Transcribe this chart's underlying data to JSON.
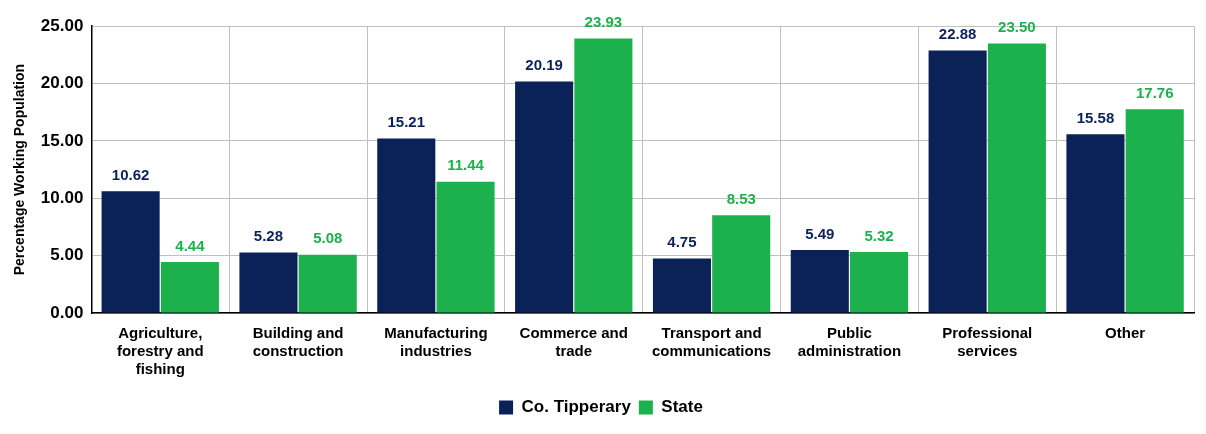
{
  "chart_data": {
    "type": "bar",
    "ylabel": "Percentage Working Population",
    "categories": [
      "Agriculture, forestry and fishing",
      "Building and construction",
      "Manufacturing industries",
      "Commerce and trade",
      "Transport and communications",
      "Public administration",
      "Professional services",
      "Other"
    ],
    "series": [
      {
        "name": "Co. Tipperary",
        "color": "#0b2259",
        "values": [
          10.62,
          5.28,
          15.21,
          20.19,
          4.75,
          5.49,
          22.88,
          15.58
        ],
        "value_labels": [
          "10.62",
          "5.28",
          "15.21",
          "20.19",
          "4.75",
          "5.49",
          "22.88",
          "15.58"
        ]
      },
      {
        "name": "State",
        "color": "#1cb14c",
        "values": [
          4.44,
          5.08,
          11.44,
          23.93,
          8.53,
          5.32,
          23.5,
          17.76
        ],
        "value_labels": [
          "4.44",
          "5.08",
          "11.44",
          "23.93",
          "8.53",
          "5.32",
          "23.50",
          "17.76"
        ]
      }
    ],
    "ylim": [
      0,
      25
    ],
    "yticks": [
      {
        "value": 0,
        "label": "0.00"
      },
      {
        "value": 5,
        "label": "5.00"
      },
      {
        "value": 10,
        "label": "10.00"
      },
      {
        "value": 15,
        "label": "15.00"
      },
      {
        "value": 20,
        "label": "20.00"
      },
      {
        "value": 25,
        "label": "25.00"
      }
    ],
    "grid": true,
    "legend": "bottom"
  }
}
